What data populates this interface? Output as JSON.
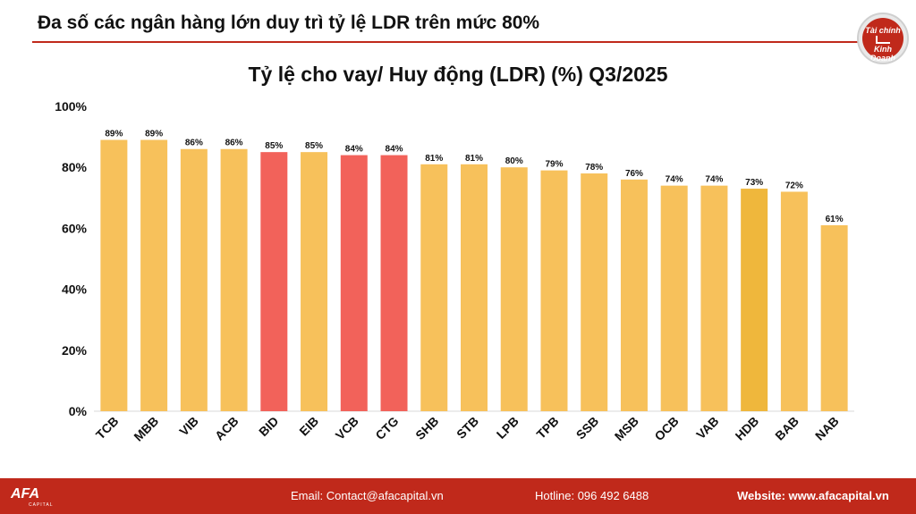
{
  "header": {
    "headline": "Đa số các ngân hàng lớn duy trì tỷ lệ LDR trên mức 80%",
    "logo_line1": "Tài chính",
    "logo_line2": "Kinh Doanh"
  },
  "chart_data": {
    "type": "bar",
    "title": "Tỷ lệ cho vay/ Huy động (LDR) (%) Q3/2025",
    "xlabel": "",
    "ylabel": "",
    "ylim": [
      0,
      100
    ],
    "yticks": [
      "0%",
      "20%",
      "40%",
      "60%",
      "80%",
      "100%"
    ],
    "grid": false,
    "categories": [
      "TCB",
      "MBB",
      "VIB",
      "ACB",
      "BID",
      "EIB",
      "VCB",
      "CTG",
      "SHB",
      "STB",
      "LPB",
      "TPB",
      "SSB",
      "MSB",
      "OCB",
      "VAB",
      "HDB",
      "BAB",
      "NAB"
    ],
    "values": [
      89,
      89,
      86,
      86,
      85,
      85,
      84,
      84,
      81,
      81,
      80,
      79,
      78,
      76,
      74,
      74,
      73,
      72,
      61
    ],
    "data_labels": [
      "89%",
      "89%",
      "86%",
      "86%",
      "85%",
      "85%",
      "84%",
      "84%",
      "81%",
      "81%",
      "80%",
      "79%",
      "78%",
      "76%",
      "74%",
      "74%",
      "73%",
      "72%",
      "61%"
    ],
    "colors": [
      "#f7c15b",
      "#f7c15b",
      "#f7c15b",
      "#f7c15b",
      "#f2625a",
      "#f7c15b",
      "#f2625a",
      "#f2625a",
      "#f7c15b",
      "#f7c15b",
      "#f7c15b",
      "#f7c15b",
      "#f7c15b",
      "#f7c15b",
      "#f7c15b",
      "#f7c15b",
      "#efb73c",
      "#f7c15b",
      "#f7c15b"
    ]
  },
  "footer": {
    "brand": "AFA",
    "brand_sub": "CAPITAL",
    "email": "Email: Contact@afacapital.vn",
    "hotline": "Hotline: 096 492 6488",
    "website": "Website: www.afacapital.vn"
  }
}
